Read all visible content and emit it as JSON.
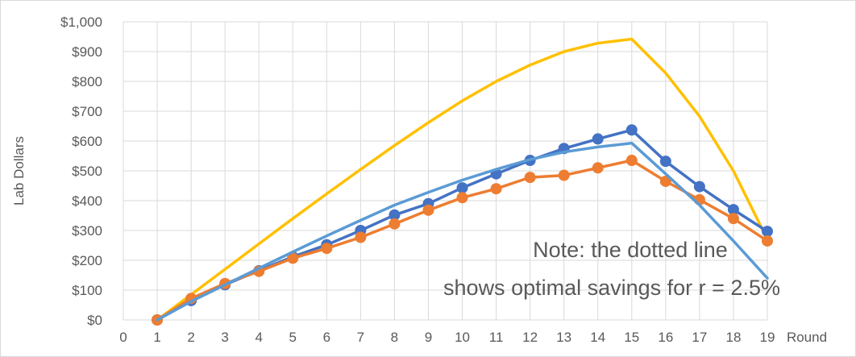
{
  "chart_data": {
    "type": "line",
    "xlabel": "Round",
    "ylabel": "Lab Dollars",
    "xlim": [
      0,
      19
    ],
    "ylim": [
      0,
      1000
    ],
    "x_ticks": [
      "0",
      "1",
      "2",
      "3",
      "4",
      "5",
      "6",
      "7",
      "8",
      "9",
      "10",
      "11",
      "12",
      "13",
      "14",
      "15",
      "16",
      "17",
      "18",
      "19"
    ],
    "y_ticks": [
      "$0",
      "$100",
      "$200",
      "$300",
      "$400",
      "$500",
      "$600",
      "$700",
      "$800",
      "$900",
      "$1,000"
    ],
    "y_tick_values": [
      0,
      100,
      200,
      300,
      400,
      500,
      600,
      700,
      800,
      900,
      1000
    ],
    "grid": true,
    "annotation": [
      "Note: the dotted line",
      "shows optimal savings for r = 2.5%"
    ],
    "series": [
      {
        "color": "#FFC000",
        "markers": false,
        "x": [
          1,
          2,
          3,
          4,
          5,
          6,
          7,
          8,
          9,
          10,
          11,
          12,
          13,
          14,
          15,
          16,
          17,
          18,
          19
        ],
        "values": [
          0,
          85,
          170,
          255,
          340,
          423,
          505,
          585,
          662,
          735,
          800,
          855,
          900,
          928,
          942,
          828,
          683,
          500,
          270
        ]
      },
      {
        "color": "#4472C4",
        "markers": true,
        "x": [
          1,
          2,
          3,
          4,
          5,
          6,
          7,
          8,
          9,
          10,
          11,
          12,
          13,
          14,
          15,
          16,
          17,
          18,
          19
        ],
        "values": [
          0,
          65,
          118,
          165,
          212,
          252,
          300,
          352,
          390,
          443,
          490,
          535,
          575,
          607,
          637,
          532,
          447,
          370,
          297
        ]
      },
      {
        "color": "#ED7D31",
        "markers": true,
        "x": [
          1,
          2,
          3,
          4,
          5,
          6,
          7,
          8,
          9,
          10,
          11,
          12,
          13,
          14,
          15,
          16,
          17,
          18,
          19
        ],
        "values": [
          0,
          72,
          122,
          163,
          207,
          240,
          277,
          322,
          368,
          410,
          440,
          478,
          485,
          510,
          535,
          465,
          403,
          340,
          265
        ]
      },
      {
        "color": "#5B9BD5",
        "markers": false,
        "x": [
          1,
          2,
          3,
          4,
          5,
          6,
          7,
          8,
          9,
          10,
          11,
          12,
          13,
          14,
          15,
          16,
          17,
          18,
          19
        ],
        "values": [
          0,
          62,
          118,
          173,
          228,
          282,
          334,
          385,
          428,
          469,
          505,
          538,
          563,
          580,
          593,
          490,
          385,
          265,
          140
        ]
      }
    ]
  }
}
